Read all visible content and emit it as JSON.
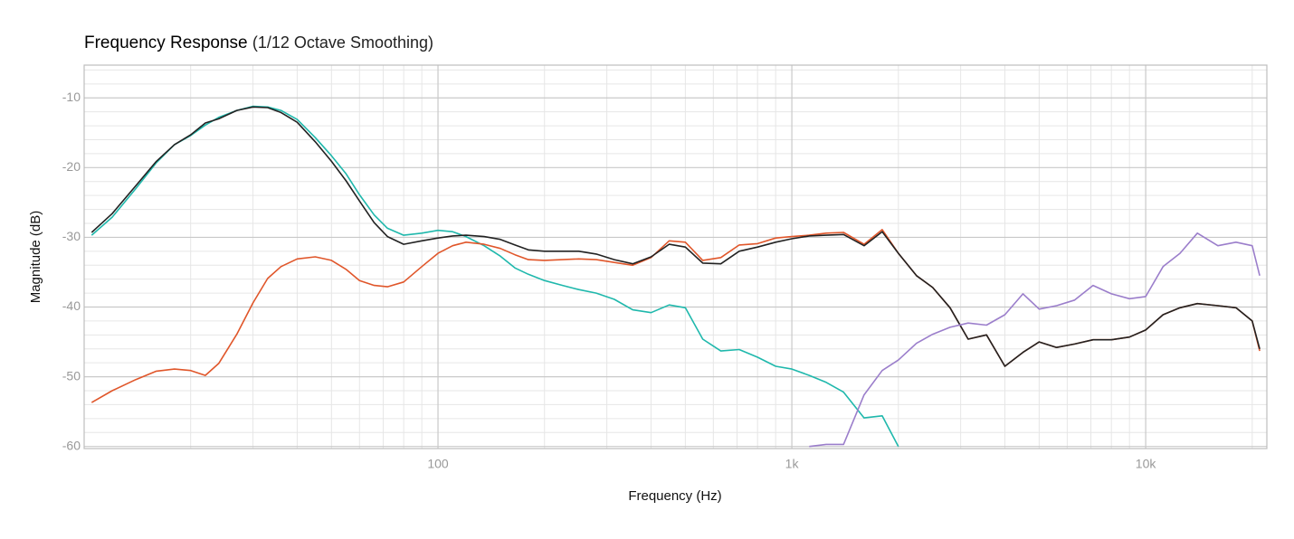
{
  "chart_data": {
    "type": "line",
    "title": "Frequency Response",
    "subtitle": "(1/12 Octave Smoothing)",
    "xlabel": "Frequency (Hz)",
    "ylabel": "Magnitude (dB)",
    "xscale": "log",
    "grid": true,
    "xlim": [
      10,
      22000
    ],
    "ylim": [
      -60.3,
      -5.3
    ],
    "xticks": [
      100,
      {
        "value": 1000,
        "label": "1k"
      },
      {
        "value": 10000,
        "label": "10k"
      }
    ],
    "xminorticks": [
      20,
      30,
      40,
      50,
      60,
      70,
      80,
      90,
      200,
      300,
      400,
      500,
      600,
      700,
      800,
      900,
      2000,
      3000,
      4000,
      5000,
      6000,
      7000,
      8000,
      9000,
      20000
    ],
    "yticks": [
      -60,
      -50,
      -40,
      -30,
      -20,
      -10
    ],
    "yminorticks": [
      -58,
      -56,
      -54,
      -52,
      -48,
      -46,
      -44,
      -42,
      -38,
      -36,
      -34,
      -32,
      -28,
      -26,
      -24,
      -22,
      -18,
      -16,
      -14,
      -12,
      -8,
      -6
    ],
    "x": [
      10.5,
      12,
      14,
      16,
      18,
      20,
      22,
      24,
      27,
      30,
      33,
      36,
      40,
      45,
      50,
      55,
      60,
      66,
      72,
      80,
      90,
      100,
      110,
      120,
      135,
      150,
      165,
      180,
      200,
      225,
      250,
      280,
      315,
      355,
      400,
      450,
      500,
      560,
      630,
      710,
      800,
      900,
      1000,
      1120,
      1250,
      1400,
      1600,
      1800,
      2000,
      2250,
      2500,
      2800,
      3150,
      3550,
      4000,
      4500,
      5000,
      5600,
      6300,
      7100,
      8000,
      9000,
      10000,
      11200,
      12500,
      14000,
      16000,
      18000,
      20000,
      21000
    ],
    "series": [
      {
        "color": "#1fb8ac",
        "values": [
          -29.7,
          -27.1,
          -23,
          -19.3,
          -16.7,
          -15.4,
          -13.9,
          -12.8,
          -11.8,
          -11.2,
          -11.3,
          -11.8,
          -13.1,
          -15.7,
          -18.3,
          -20.9,
          -23.9,
          -26.8,
          -28.7,
          -29.7,
          -29.4,
          -29.0,
          -29.2,
          -29.9,
          -31.2,
          -32.7,
          -34.4,
          -35.3,
          -36.2,
          -36.9,
          -37.5,
          -38.0,
          -38.9,
          -40.4,
          -40.8,
          -39.7,
          -40.1,
          -44.6,
          -46.3,
          -46.1,
          -47.2,
          -48.5,
          -48.9,
          -49.8,
          -50.8,
          -52.2,
          -55.9,
          -55.6,
          -60,
          null,
          null,
          null,
          null,
          null,
          null,
          null,
          null,
          null,
          null,
          null,
          null,
          null,
          null,
          null,
          null,
          null,
          null,
          null,
          null,
          null
        ]
      },
      {
        "color": "#e0562a",
        "values": [
          -53.7,
          -52.0,
          -50.4,
          -49.2,
          -48.9,
          -49.1,
          -49.8,
          -48.1,
          -43.9,
          -39.4,
          -35.9,
          -34.2,
          -33.1,
          -32.8,
          -33.3,
          -34.6,
          -36.2,
          -36.9,
          -37.1,
          -36.4,
          -34.2,
          -32.3,
          -31.2,
          -30.7,
          -31.0,
          -31.6,
          -32.5,
          -33.2,
          -33.3,
          -33.2,
          -33.1,
          -33.2,
          -33.6,
          -34.0,
          -32.9,
          -30.5,
          -30.7,
          -33.3,
          -32.9,
          -31.1,
          -30.9,
          -30.1,
          -29.9,
          -29.7,
          -29.4,
          -29.3,
          -31.0,
          -28.9,
          -32.3,
          -35.5,
          -37.2,
          -40.1,
          -44.6,
          -44.0,
          -48.5,
          -46.5,
          -45.0,
          -45.8,
          -45.3,
          -44.7,
          -44.7,
          -44.3,
          -43.3,
          -41.1,
          -40.1,
          -39.5,
          -39.8,
          -40.1,
          -42.0,
          -46.3
        ]
      },
      {
        "color": "#222222",
        "values": [
          -29.3,
          -26.6,
          -22.6,
          -19.1,
          -16.7,
          -15.3,
          -13.6,
          -13.0,
          -11.8,
          -11.3,
          -11.4,
          -12.1,
          -13.5,
          -16.3,
          -19.1,
          -21.9,
          -24.8,
          -27.9,
          -29.9,
          -31.0,
          -30.5,
          -30.1,
          -29.8,
          -29.7,
          -29.9,
          -30.3,
          -31.1,
          -31.8,
          -32.0,
          -32.0,
          -32.0,
          -32.4,
          -33.2,
          -33.8,
          -32.8,
          -31.0,
          -31.4,
          -33.7,
          -33.8,
          -32.0,
          -31.4,
          -30.7,
          -30.2,
          -29.8,
          -29.7,
          -29.6,
          -31.2,
          -29.2,
          -32.3,
          -35.5,
          -37.2,
          -40.1,
          -44.6,
          -44.0,
          -48.5,
          -46.5,
          -45.0,
          -45.8,
          -45.3,
          -44.7,
          -44.7,
          -44.3,
          -43.3,
          -41.1,
          -40.1,
          -39.5,
          -39.8,
          -40.1,
          -42.0,
          -46.0
        ]
      },
      {
        "color": "#9b7ecb",
        "values": [
          null,
          null,
          null,
          null,
          null,
          null,
          null,
          null,
          null,
          null,
          null,
          null,
          null,
          null,
          null,
          null,
          null,
          null,
          null,
          null,
          null,
          null,
          null,
          null,
          null,
          null,
          null,
          null,
          null,
          null,
          null,
          null,
          null,
          null,
          null,
          null,
          null,
          null,
          null,
          null,
          null,
          null,
          null,
          -60,
          -59.7,
          -59.7,
          -52.6,
          -49.1,
          -47.6,
          -45.2,
          -43.9,
          -42.9,
          -42.3,
          -42.6,
          -41.1,
          -38.1,
          -40.3,
          -39.8,
          -39.0,
          -36.9,
          -38.1,
          -38.8,
          -38.5,
          -34.2,
          -32.3,
          -29.4,
          -31.2,
          -30.7,
          -31.2,
          -35.5
        ]
      }
    ]
  }
}
